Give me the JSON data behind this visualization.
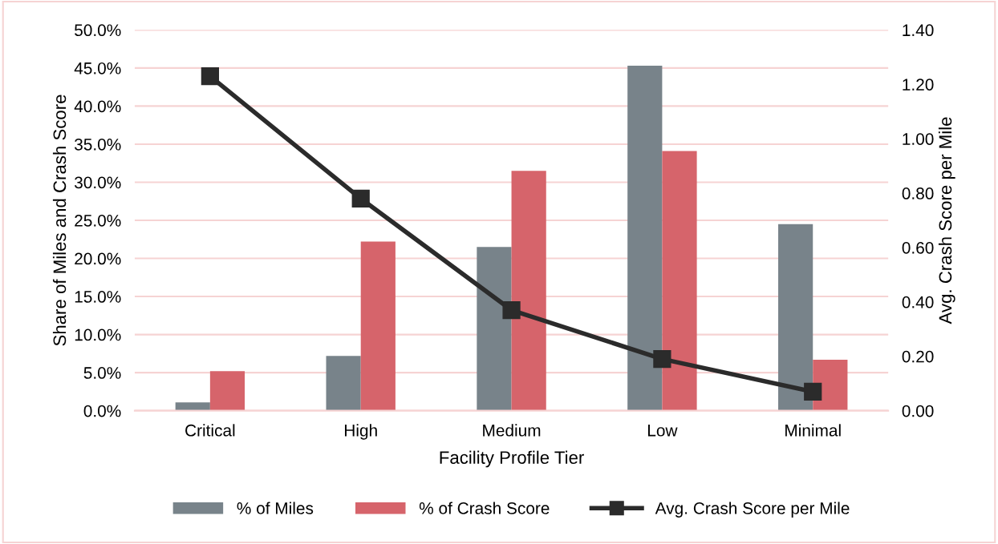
{
  "chart_data": {
    "type": "bar",
    "xlabel": "Facility Profile Tier",
    "ylabel": "Share of Miles and Crash Score",
    "y2label": "Avg. Crash Score per Mile",
    "categories": [
      "Critical",
      "High",
      "Medium",
      "Low",
      "Minimal"
    ],
    "series": [
      {
        "name": "% of Miles",
        "color": "#78838a",
        "values": [
          1.1,
          7.2,
          21.5,
          45.3,
          24.5
        ]
      },
      {
        "name": "% of Crash Score",
        "color": "#d6646b",
        "values": [
          5.2,
          22.2,
          31.5,
          34.1,
          6.7
        ]
      },
      {
        "name": "Avg. Crash Score per Mile",
        "type": "line",
        "axis": "y2",
        "color": "#2b2b2b",
        "values": [
          1.23,
          0.78,
          0.37,
          0.19,
          0.07
        ],
        "marker": "square",
        "line_style": "solid"
      }
    ],
    "ylim": [
      0,
      50
    ],
    "yticks": [
      {
        "value": 0,
        "label": "0.0%"
      },
      {
        "value": 5,
        "label": "5.0%"
      },
      {
        "value": 10,
        "label": "10.0%"
      },
      {
        "value": 15,
        "label": "15.0%"
      },
      {
        "value": 20,
        "label": "20.0%"
      },
      {
        "value": 25,
        "label": "25.0%"
      },
      {
        "value": 30,
        "label": "30.0%"
      },
      {
        "value": 35,
        "label": "35.0%"
      },
      {
        "value": 40,
        "label": "40.0%"
      },
      {
        "value": 45,
        "label": "45.0%"
      },
      {
        "value": 50,
        "label": "50.0%"
      }
    ],
    "y2lim": [
      0,
      1.4
    ],
    "y2ticks": [
      {
        "value": 0,
        "label": "0.00"
      },
      {
        "value": 0.2,
        "label": "0.20"
      },
      {
        "value": 0.4,
        "label": "0.40"
      },
      {
        "value": 0.6,
        "label": "0.60"
      },
      {
        "value": 0.8,
        "label": "0.80"
      },
      {
        "value": 1.0,
        "label": "1.00"
      },
      {
        "value": 1.2,
        "label": "1.20"
      },
      {
        "value": 1.4,
        "label": "1.40"
      }
    ],
    "grid": "y",
    "legend": "bottom"
  }
}
